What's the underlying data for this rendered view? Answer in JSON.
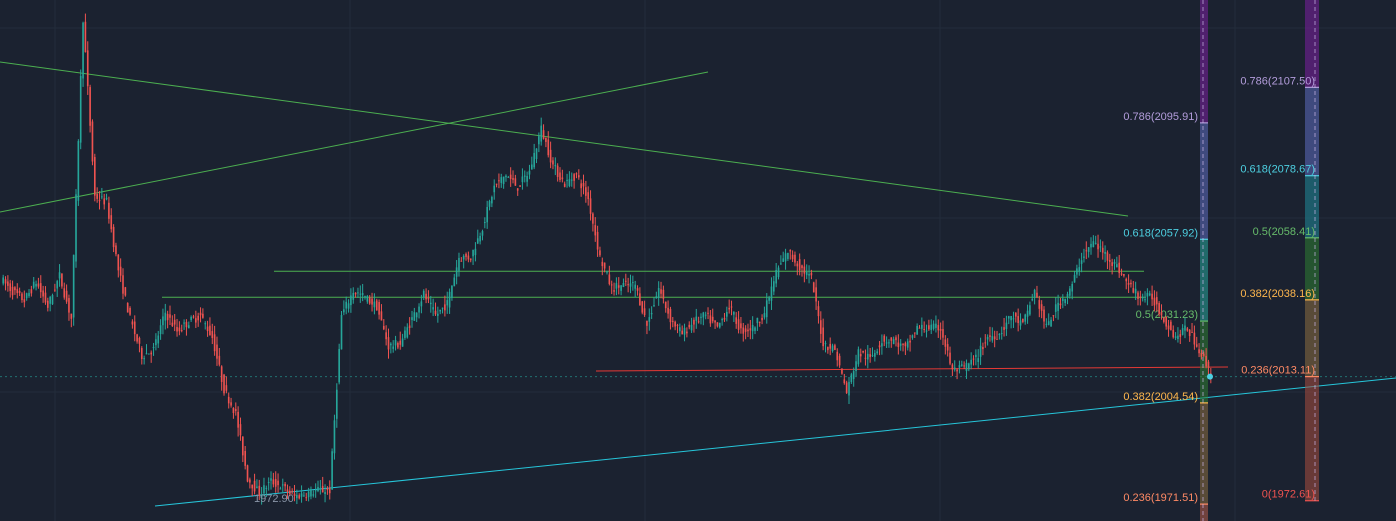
{
  "chart_data": {
    "type": "candlestick",
    "colors": {
      "background": "#1b2230",
      "grid": "#232c3b",
      "candle_up": "#26a69a",
      "candle_down": "#ef5350",
      "trend_green": "#4caf50",
      "support_cyan": "#26c6da",
      "support_red": "#e53935",
      "fib_786": "#b39ddb",
      "fib_618": "#4dd0e1",
      "fib_5": "#66bb6a",
      "fib_382": "#ffb74d",
      "fib_236": "#ff8a65",
      "fib_0": "#ef5350"
    },
    "price_range": [
      1966,
      2136
    ],
    "price_line": 2013.11,
    "low_marker": {
      "value": 1972.9,
      "label": "1972.90"
    },
    "horizontal_levels": [
      {
        "name": "resistance-upper",
        "value": 2047.5,
        "color": "#4caf50"
      },
      {
        "name": "resistance-lower",
        "value": 2039.0,
        "color": "#4caf50"
      },
      {
        "name": "support-red",
        "value": 2011.0,
        "color": "#e53935"
      }
    ],
    "fib_retracement_1": {
      "levels": [
        {
          "ratio": "0.786",
          "price": 2095.91,
          "label": "0.786(2095.91)",
          "color": "#b39ddb"
        },
        {
          "ratio": "0.618",
          "price": 2057.92,
          "label": "0.618(2057.92)",
          "color": "#4dd0e1"
        },
        {
          "ratio": "0.5",
          "price": 2031.23,
          "label": "0.5(2031.23)",
          "color": "#66bb6a"
        },
        {
          "ratio": "0.382",
          "price": 2004.54,
          "label": "0.382(2004.54)",
          "color": "#ffb74d"
        },
        {
          "ratio": "0.236",
          "price": 1971.51,
          "label": "0.236(1971.51)",
          "color": "#ff8a65"
        }
      ]
    },
    "fib_retracement_2": {
      "levels": [
        {
          "ratio": "0.786",
          "price": 2107.5,
          "label": "0.786(2107.50)",
          "color": "#b39ddb"
        },
        {
          "ratio": "0.618",
          "price": 2078.67,
          "label": "0.618(2078.67)",
          "color": "#4dd0e1"
        },
        {
          "ratio": "0.5",
          "price": 2058.41,
          "label": "0.5(2058.41)",
          "color": "#66bb6a"
        },
        {
          "ratio": "0.382",
          "price": 2038.16,
          "label": "0.382(2038.16)",
          "color": "#ffb74d"
        },
        {
          "ratio": "0.236",
          "price": 2013.11,
          "label": "0.236(2013.11)",
          "color": "#ff8a65"
        },
        {
          "ratio": "0",
          "price": 1972.61,
          "label": "0(1972.61)",
          "color": "#ef5350"
        }
      ]
    },
    "series": [
      {
        "values": [
          2045,
          2041,
          2038,
          2044,
          2036,
          2046,
          2032,
          2130,
          2072,
          2070,
          2048,
          2032,
          2020,
          2022,
          2034,
          2028,
          2031,
          2033,
          2026,
          2009,
          2001,
          1980,
          1975,
          1979,
          1977,
          1974,
          1975,
          1976,
          1976,
          2033,
          2041,
          2039,
          2036,
          2023,
          2024,
          2032,
          2040,
          2033,
          2037,
          2052,
          2052,
          2062,
          2075,
          2079,
          2075,
          2080,
          2094,
          2082,
          2076,
          2079,
          2071,
          2052,
          2042,
          2043,
          2043,
          2030,
          2042,
          2032,
          2027,
          2031,
          2033,
          2029,
          2036,
          2028,
          2029,
          2034,
          2047,
          2054,
          2049,
          2045,
          2024,
          2022,
          2008,
          2021,
          2019,
          2025,
          2025,
          2022,
          2029,
          2029,
          2029,
          2015,
          2016,
          2019,
          2026,
          2027,
          2033,
          2030,
          2041,
          2029,
          2037,
          2041,
          2052,
          2057,
          2053,
          2049,
          2043,
          2039,
          2039,
          2032,
          2026,
          2029,
          2022,
          2014
        ]
      }
    ]
  }
}
